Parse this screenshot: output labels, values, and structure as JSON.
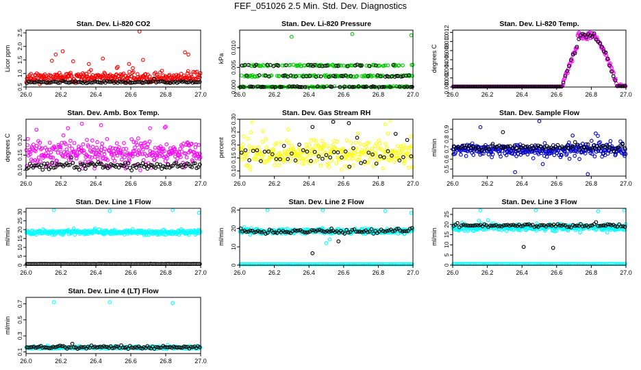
{
  "page": {
    "title": "FEF_051026  2.5 Min. Std. Dev. Diagnostics"
  },
  "chart_data": [
    {
      "type": "scatter",
      "title": "Stan. Dev. Li-820 CO2",
      "xlabel": "",
      "ylabel": "Licor ppm",
      "xlim": [
        26.0,
        27.0
      ],
      "ylim": [
        0.5,
        2.6
      ],
      "xticks": [
        "26.0",
        "26.2",
        "26.4",
        "26.6",
        "26.8",
        "27.0"
      ],
      "yticks": [
        "0.5",
        "1.0",
        "1.5",
        "2.0",
        "2.5"
      ],
      "series": [
        {
          "color": "#ff0000",
          "kind": "noisy",
          "base": 0.85,
          "spread": 0.2,
          "n": 300,
          "seed": 11,
          "spikes": [
            [
              26.17,
              1.7
            ],
            [
              26.21,
              1.82
            ],
            [
              26.27,
              1.45
            ],
            [
              26.36,
              1.35
            ],
            [
              26.44,
              1.55
            ],
            [
              26.52,
              1.2
            ],
            [
              26.59,
              1.35
            ],
            [
              26.65,
              2.55
            ],
            [
              26.67,
              1.5
            ],
            [
              26.91,
              1.78
            ],
            [
              26.93,
              1.7
            ]
          ]
        },
        {
          "color": "#000000",
          "kind": "noisy",
          "base": 0.68,
          "spread": 0.04,
          "n": 100,
          "seed": 12,
          "spikes": []
        }
      ]
    },
    {
      "type": "scatter",
      "title": "Stan. Dev. Li-820 Pressure",
      "xlabel": "",
      "ylabel": "kPa",
      "xlim": [
        26.0,
        27.0
      ],
      "ylim": [
        0.0,
        0.0145
      ],
      "xticks": [
        "26.0",
        "26.2",
        "26.4",
        "26.6",
        "26.8",
        "27.0"
      ],
      "yticks": [
        "0.000",
        "0.005",
        "0.010"
      ],
      "series": [
        {
          "color": "#00cc00",
          "kind": "levels",
          "levels": [
            0.0,
            0.0028,
            0.0055
          ],
          "n": 330,
          "seed": 21,
          "spikes": [
            [
              26.3,
              0.0128
            ],
            [
              26.65,
              0.0135
            ],
            [
              26.99,
              0.0132
            ]
          ]
        },
        {
          "color": "#000000",
          "kind": "levels",
          "levels": [
            0.0,
            0.0028,
            0.0055
          ],
          "n": 110,
          "seed": 22,
          "spikes": []
        }
      ]
    },
    {
      "type": "scatter",
      "title": "Stan. Dev. Li-820 Temp.",
      "xlabel": "",
      "ylabel": "degrees C",
      "xlim": [
        26.0,
        27.0
      ],
      "ylim": [
        0.0,
        0.0125
      ],
      "xticks": [
        "26.0",
        "26.2",
        "26.4",
        "26.6",
        "26.8",
        "27.0"
      ],
      "yticks": [
        "0.000",
        "0.002",
        "0.004",
        "0.006",
        "0.008",
        "0.010",
        "0.012"
      ],
      "series": [
        {
          "color": "#ff00ff",
          "kind": "temp",
          "n": 260,
          "seed": 31,
          "spikes": []
        },
        {
          "color": "#000000",
          "kind": "temp",
          "n": 90,
          "seed": 32,
          "spikes": []
        }
      ]
    },
    {
      "type": "scatter",
      "title": "Stan. Dev. Amb. Box Temp.",
      "xlabel": "",
      "ylabel": "degrees C",
      "xlim": [
        26.0,
        27.0
      ],
      "ylim": [
        0.08,
        0.27
      ],
      "xticks": [
        "26.0",
        "26.2",
        "26.4",
        "26.6",
        "26.8",
        "27.0"
      ],
      "yticks": [
        "0.10",
        "0.15",
        "0.20"
      ],
      "series": [
        {
          "color": "#ff00ff",
          "kind": "noisy",
          "base": 0.155,
          "spread": 0.045,
          "n": 320,
          "seed": 41,
          "spikes": [
            [
              26.06,
              0.235
            ],
            [
              26.24,
              0.24
            ],
            [
              26.32,
              0.255
            ],
            [
              26.43,
              0.25
            ],
            [
              26.71,
              0.24
            ],
            [
              26.8,
              0.245
            ]
          ]
        },
        {
          "color": "#000000",
          "kind": "noisy",
          "base": 0.113,
          "spread": 0.012,
          "n": 110,
          "seed": 42,
          "spikes": []
        }
      ]
    },
    {
      "type": "scatter",
      "title": "Stan. Dev. Gas Stream RH",
      "xlabel": "",
      "ylabel": "percent",
      "xlim": [
        26.0,
        27.0
      ],
      "ylim": [
        0.08,
        0.3
      ],
      "xticks": [
        "26.0",
        "26.2",
        "26.4",
        "26.6",
        "26.8",
        "27.0"
      ],
      "yticks": [
        "0.10",
        "0.15",
        "0.20",
        "0.25",
        "0.30"
      ],
      "series": [
        {
          "color": "#ffff00",
          "kind": "noisy",
          "base": 0.165,
          "spread": 0.055,
          "n": 300,
          "seed": 51,
          "spikes": [
            [
              26.28,
              0.26
            ],
            [
              26.84,
              0.28
            ],
            [
              26.87,
              0.295
            ]
          ]
        },
        {
          "color": "#000000",
          "kind": "noisy",
          "base": 0.16,
          "spread": 0.05,
          "n": 45,
          "seed": 52,
          "spikes": [
            [
              26.42,
              0.27
            ],
            [
              26.54,
              0.29
            ],
            [
              26.63,
              0.285
            ]
          ]
        }
      ]
    },
    {
      "type": "scatter",
      "title": "Stan. Dev. Sample Flow",
      "xlabel": "",
      "ylabel": "ml/min",
      "xlim": [
        26.0,
        27.0
      ],
      "ylim": [
        0.43,
        1.0
      ],
      "xticks": [
        "26.0",
        "26.2",
        "26.4",
        "26.6",
        "26.8",
        "27.0"
      ],
      "yticks": [
        "0.5",
        "0.6",
        "0.7",
        "0.8",
        "0.9"
      ],
      "series": [
        {
          "color": "#0000cc",
          "kind": "noisy",
          "base": 0.69,
          "spread": 0.07,
          "n": 330,
          "seed": 61,
          "spikes": [
            [
              26.16,
              0.92
            ],
            [
              26.5,
              0.98
            ],
            [
              26.36,
              0.47
            ],
            [
              26.78,
              0.45
            ],
            [
              26.52,
              0.55
            ]
          ]
        },
        {
          "color": "#000000",
          "kind": "noisy",
          "base": 0.72,
          "spread": 0.03,
          "n": 80,
          "seed": 62,
          "spikes": [
            [
              26.29,
              0.87
            ]
          ]
        }
      ]
    },
    {
      "type": "scatter",
      "title": "Stan. Dev. Line 1 Flow",
      "xlabel": "",
      "ylabel": "ml/min",
      "xlim": [
        26.0,
        27.0
      ],
      "ylim": [
        0.0,
        32.0
      ],
      "xticks": [
        "26.0",
        "26.2",
        "26.4",
        "26.6",
        "26.8",
        "27.0"
      ],
      "yticks": [
        "0",
        "5",
        "10",
        "15",
        "20",
        "25",
        "30"
      ],
      "series": [
        {
          "color": "#00ffff",
          "kind": "noisy",
          "base": 18.5,
          "spread": 1.3,
          "n": 320,
          "seed": 71,
          "spikes": [
            [
              26.16,
              31
            ],
            [
              26.48,
              30.5
            ],
            [
              26.84,
              31
            ],
            [
              26.99,
              29.5
            ]
          ]
        },
        {
          "color": "#000000",
          "kind": "noisy",
          "base": 0.7,
          "spread": 0.05,
          "n": 110,
          "seed": 72,
          "spikes": []
        }
      ]
    },
    {
      "type": "scatter",
      "title": "Stan. Dev. Line 2 Flow",
      "xlabel": "",
      "ylabel": "ml/min",
      "xlim": [
        26.0,
        27.0
      ],
      "ylim": [
        0.0,
        31.0
      ],
      "xticks": [
        "26.0",
        "26.2",
        "26.4",
        "26.6",
        "26.8",
        "27.0"
      ],
      "yticks": [
        "0",
        "10",
        "20",
        "30"
      ],
      "series": [
        {
          "color": "#00ffff",
          "kind": "noisy",
          "base": 18.5,
          "spread": 1.5,
          "n": 320,
          "seed": 81,
          "spikes": [
            [
              26.16,
              30
            ],
            [
              26.48,
              30
            ],
            [
              26.84,
              29.5
            ],
            [
              26.99,
              28.5
            ],
            [
              26.5,
              12
            ],
            [
              26.52,
              14
            ]
          ]
        },
        {
          "color": "#00ffff",
          "kind": "noisy",
          "base": 0.5,
          "spread": 0.03,
          "n": 120,
          "seed": 83,
          "spikes": []
        },
        {
          "color": "#000000",
          "kind": "noisy",
          "base": 18.5,
          "spread": 1.2,
          "n": 90,
          "seed": 82,
          "spikes": [
            [
              26.42,
              6.5
            ],
            [
              26.53,
              20
            ],
            [
              26.57,
              13
            ]
          ]
        }
      ]
    },
    {
      "type": "scatter",
      "title": "Stan. Dev. Line 3 Flow",
      "xlabel": "",
      "ylabel": "ml/min",
      "xlim": [
        26.0,
        27.0
      ],
      "ylim": [
        0.0,
        28.0
      ],
      "xticks": [
        "26.0",
        "26.2",
        "26.4",
        "26.6",
        "26.8",
        "27.0"
      ],
      "yticks": [
        "0",
        "5",
        "10",
        "15",
        "20",
        "25"
      ],
      "series": [
        {
          "color": "#00ffff",
          "kind": "noisy",
          "base": 18.5,
          "spread": 1.8,
          "n": 320,
          "seed": 91,
          "spikes": [
            [
              26.16,
              27
            ],
            [
              26.48,
              27
            ],
            [
              26.84,
              26.5
            ],
            [
              26.99,
              27
            ]
          ]
        },
        {
          "color": "#00ffff",
          "kind": "noisy",
          "base": 0.6,
          "spread": 0.03,
          "n": 120,
          "seed": 93,
          "spikes": []
        },
        {
          "color": "#000000",
          "kind": "noisy",
          "base": 19.5,
          "spread": 0.8,
          "n": 90,
          "seed": 92,
          "spikes": [
            [
              26.41,
              9
            ],
            [
              26.58,
              8.5
            ]
          ]
        }
      ]
    },
    {
      "type": "scatter",
      "title": "Stan. Dev. Line 4 (LT) Flow",
      "xlabel": "",
      "ylabel": "ml/min",
      "xlim": [
        26.0,
        27.0
      ],
      "ylim": [
        0.08,
        0.78
      ],
      "xticks": [
        "26.0",
        "26.2",
        "26.4",
        "26.6",
        "26.8",
        "27.0"
      ],
      "yticks": [
        "0.1",
        "0.3",
        "0.5",
        "0.7"
      ],
      "series": [
        {
          "color": "#00ffff",
          "kind": "noisy",
          "base": 0.155,
          "spread": 0.015,
          "n": 320,
          "seed": 101,
          "spikes": [
            [
              26.16,
              0.72
            ],
            [
              26.48,
              0.72
            ],
            [
              26.84,
              0.71
            ]
          ]
        },
        {
          "color": "#000000",
          "kind": "noisy",
          "base": 0.16,
          "spread": 0.018,
          "n": 100,
          "seed": 102,
          "spikes": []
        }
      ]
    }
  ]
}
